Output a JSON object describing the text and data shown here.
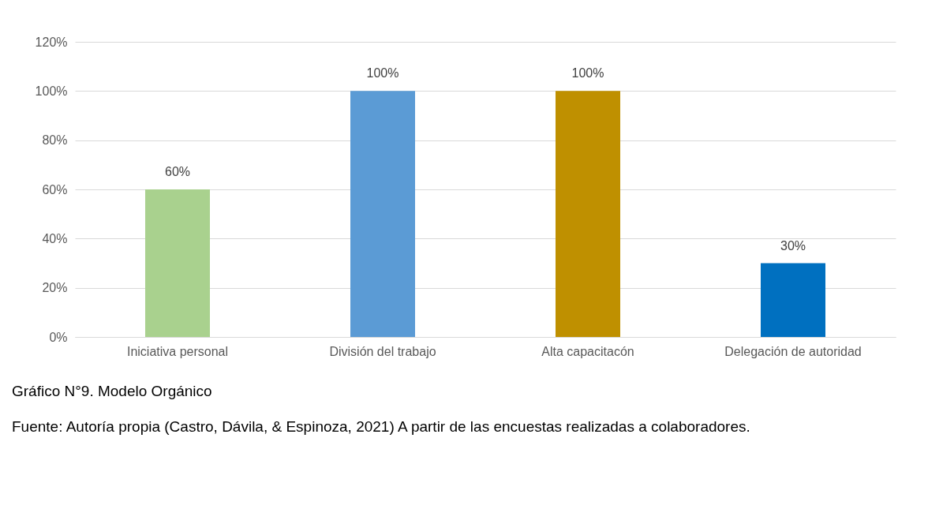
{
  "chart_data": {
    "type": "bar",
    "categories": [
      "Iniciativa personal",
      "División del trabajo",
      "Alta capacitacón",
      "Delegación de autoridad"
    ],
    "values": [
      60,
      100,
      100,
      30
    ],
    "colors": [
      "#a9d18e",
      "#5b9bd5",
      "#bf9000",
      "#0070c0"
    ],
    "value_labels": [
      "60%",
      "100%",
      "100%",
      "30%"
    ],
    "ylim": [
      0,
      120
    ],
    "yticks": [
      {
        "value": 0,
        "label": "0%"
      },
      {
        "value": 20,
        "label": "20%"
      },
      {
        "value": 40,
        "label": "40%"
      },
      {
        "value": 60,
        "label": "60%"
      },
      {
        "value": 80,
        "label": "80%"
      },
      {
        "value": 100,
        "label": "100%"
      },
      {
        "value": 120,
        "label": "120%"
      }
    ],
    "grid": "y",
    "legend": false,
    "annotations": [
      "Gráfico N°9. Modelo Orgánico",
      "Fuente: Autoría propia (Castro, Dávila, & Espinoza, 2021) A partir de las encuestas realizadas a colaboradores."
    ]
  }
}
